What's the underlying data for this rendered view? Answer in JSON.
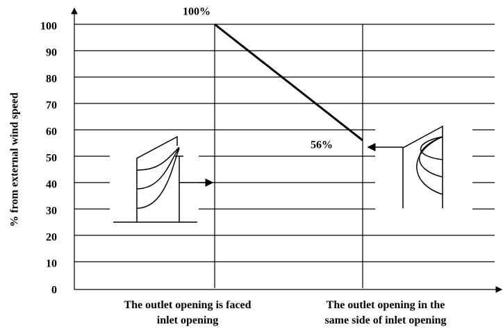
{
  "chart_data": {
    "type": "line",
    "y_label": "% from external wind speed",
    "categories": [
      "The outlet opening is faced inlet opening",
      "The outlet opening in the same side of inlet opening"
    ],
    "values": [
      100,
      56
    ],
    "value_labels": [
      "100%",
      "56%"
    ],
    "color": "#000000",
    "ylim": [
      0,
      100
    ],
    "yticks": [
      0,
      10,
      20,
      30,
      40,
      50,
      60,
      70,
      80,
      90,
      100
    ],
    "grid": true
  }
}
